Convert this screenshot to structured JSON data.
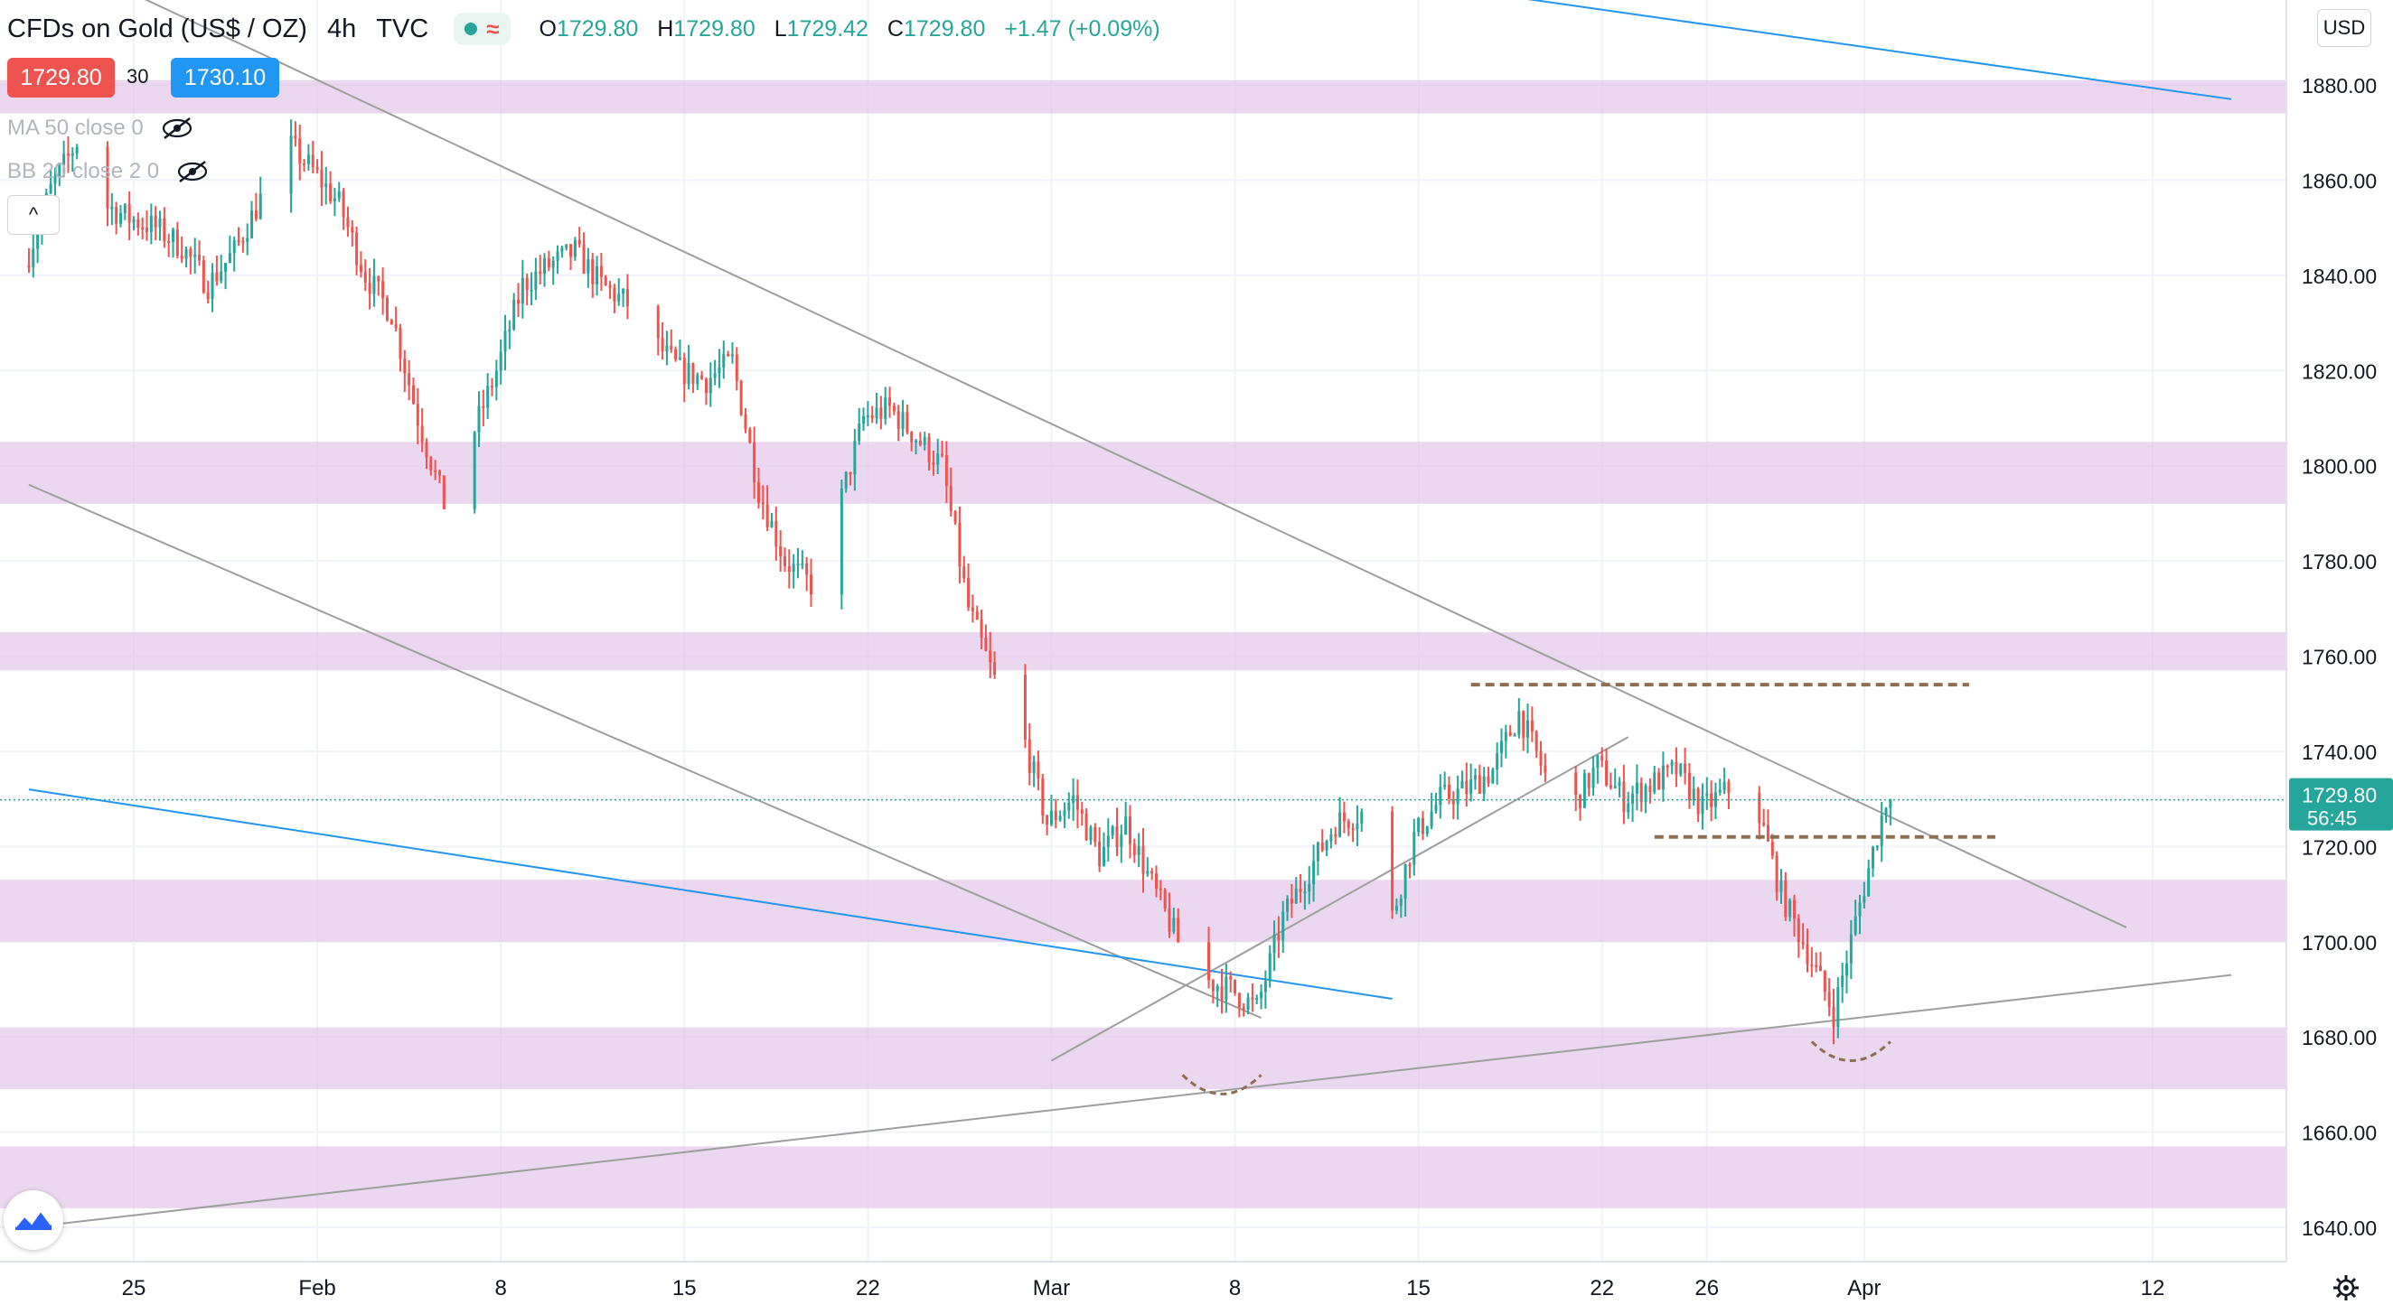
{
  "header": {
    "symbol": "CFDs on Gold (US$ / OZ)",
    "timeframe": "4h",
    "source": "TVC",
    "status_wave": "≈",
    "ohlc": {
      "o_label": "O",
      "o_value": "1729.80",
      "h_label": "H",
      "h_value": "1729.80",
      "l_label": "L",
      "l_value": "1729.42",
      "c_label": "C",
      "c_value": "1729.80",
      "change": "+1.47 (+0.09%)"
    }
  },
  "trade": {
    "sell_price": "1729.80",
    "spread": "30",
    "buy_price": "1730.10"
  },
  "indicators": [
    {
      "label": "MA 50 close 0",
      "icon": "eye-off-icon"
    },
    {
      "label": "BB 20 close 2 0",
      "icon": "eye-off-icon"
    }
  ],
  "collapse_glyph": "^",
  "currency_button": "USD",
  "price_label": {
    "price": "1729.80",
    "countdown": "56:45"
  },
  "colors": {
    "up": "#26a69a",
    "down": "#ef5350",
    "zone": "#e1bee7",
    "trendline_gray": "#9e9e9e",
    "trendline_blue": "#2196f3",
    "dashed_level": "#8d6e50",
    "grid": "#f0f3fa"
  },
  "chart_data": {
    "type": "candlestick",
    "title": "CFDs on Gold (US$ / OZ), 4h",
    "y_axis": {
      "range": [
        1636,
        1905
      ],
      "ticks": [
        1640,
        1660,
        1680,
        1700,
        1720,
        1740,
        1760,
        1780,
        1800,
        1820,
        1840,
        1860,
        1880
      ],
      "tick_labels": [
        "1640.00",
        "1660.00",
        "1680.00",
        "1700.00",
        "1720.00",
        "1740.00",
        "1760.00",
        "1780.00",
        "1800.00",
        "1820.00",
        "1840.00",
        "1860.00",
        "1880.00"
      ]
    },
    "x_axis": {
      "range": [
        "2021-01-21",
        "2021-04-15"
      ],
      "ticks": [
        {
          "date": "2021-01-25",
          "label": "25"
        },
        {
          "date": "2021-02-01",
          "label": "Feb"
        },
        {
          "date": "2021-02-08",
          "label": "8"
        },
        {
          "date": "2021-02-15",
          "label": "15"
        },
        {
          "date": "2021-02-22",
          "label": "22"
        },
        {
          "date": "2021-03-01",
          "label": "Mar"
        },
        {
          "date": "2021-03-08",
          "label": "8"
        },
        {
          "date": "2021-03-15",
          "label": "15"
        },
        {
          "date": "2021-03-22",
          "label": "22"
        },
        {
          "date": "2021-03-26",
          "label": "26"
        },
        {
          "date": "2021-04-01",
          "label": "Apr"
        },
        {
          "date": "2021-04-12",
          "label": "12"
        }
      ]
    },
    "price_path": [
      [
        "2021-01-21",
        1842
      ],
      [
        "2021-01-22",
        1858
      ],
      [
        "2021-01-23",
        1868
      ],
      [
        "2021-01-24",
        1855
      ],
      [
        "2021-01-25",
        1852
      ],
      [
        "2021-01-26",
        1850
      ],
      [
        "2021-01-27",
        1846
      ],
      [
        "2021-01-28",
        1838
      ],
      [
        "2021-01-29",
        1845
      ],
      [
        "2021-01-30",
        1856
      ],
      [
        "2021-01-31",
        1868
      ],
      [
        "2021-02-01",
        1862
      ],
      [
        "2021-02-02",
        1855
      ],
      [
        "2021-02-03",
        1840
      ],
      [
        "2021-02-04",
        1832
      ],
      [
        "2021-02-05",
        1810
      ],
      [
        "2021-02-06",
        1792
      ],
      [
        "2021-02-07",
        1805
      ],
      [
        "2021-02-08",
        1820
      ],
      [
        "2021-02-09",
        1838
      ],
      [
        "2021-02-10",
        1842
      ],
      [
        "2021-02-11",
        1845
      ],
      [
        "2021-02-12",
        1838
      ],
      [
        "2021-02-13",
        1834
      ],
      [
        "2021-02-14",
        1826
      ],
      [
        "2021-02-15",
        1820
      ],
      [
        "2021-02-16",
        1818
      ],
      [
        "2021-02-17",
        1822
      ],
      [
        "2021-02-18",
        1795
      ],
      [
        "2021-02-19",
        1780
      ],
      [
        "2021-02-20",
        1775
      ],
      [
        "2021-02-21",
        1790
      ],
      [
        "2021-02-22",
        1810
      ],
      [
        "2021-02-23",
        1812
      ],
      [
        "2021-02-24",
        1806
      ],
      [
        "2021-02-25",
        1800
      ],
      [
        "2021-02-26",
        1770
      ],
      [
        "2021-02-27",
        1755
      ],
      [
        "2021-02-28",
        1745
      ],
      [
        "2021-03-01",
        1725
      ],
      [
        "2021-03-02",
        1730
      ],
      [
        "2021-03-03",
        1718
      ],
      [
        "2021-03-04",
        1725
      ],
      [
        "2021-03-05",
        1712
      ],
      [
        "2021-03-06",
        1700
      ],
      [
        "2021-03-07",
        1692
      ],
      [
        "2021-03-08",
        1690
      ],
      [
        "2021-03-09",
        1686
      ],
      [
        "2021-03-10",
        1705
      ],
      [
        "2021-03-11",
        1715
      ],
      [
        "2021-03-12",
        1725
      ],
      [
        "2021-03-13",
        1727
      ],
      [
        "2021-03-14",
        1702
      ],
      [
        "2021-03-15",
        1722
      ],
      [
        "2021-03-16",
        1730
      ],
      [
        "2021-03-17",
        1732
      ],
      [
        "2021-03-18",
        1736
      ],
      [
        "2021-03-19",
        1748
      ],
      [
        "2021-03-20",
        1735
      ],
      [
        "2021-03-21",
        1728
      ],
      [
        "2021-03-22",
        1737
      ],
      [
        "2021-03-23",
        1730
      ],
      [
        "2021-03-24",
        1733
      ],
      [
        "2021-03-25",
        1736
      ],
      [
        "2021-03-26",
        1728
      ],
      [
        "2021-03-27",
        1732
      ],
      [
        "2021-03-28",
        1730
      ],
      [
        "2021-03-29",
        1710
      ],
      [
        "2021-03-30",
        1698
      ],
      [
        "2021-03-31",
        1685
      ],
      [
        "2021-04-01",
        1708
      ],
      [
        "2021-04-02",
        1729.8
      ]
    ],
    "horizontal_zones": [
      {
        "from": 1874,
        "to": 1881
      },
      {
        "from": 1792,
        "to": 1805
      },
      {
        "from": 1757,
        "to": 1765
      },
      {
        "from": 1700,
        "to": 1713
      },
      {
        "from": 1669,
        "to": 1682
      },
      {
        "from": 1644,
        "to": 1657
      }
    ],
    "trendlines": [
      {
        "color": "gray",
        "from": [
          "2021-01-20",
          1912
        ],
        "to": [
          "2021-04-11",
          1703
        ]
      },
      {
        "color": "gray",
        "from": [
          "2021-01-21",
          1796
        ],
        "to": [
          "2021-03-09",
          1684
        ]
      },
      {
        "color": "gray",
        "from": [
          "2021-01-21",
          1640
        ],
        "to": [
          "2021-04-15",
          1693
        ]
      },
      {
        "color": "gray",
        "from": [
          "2021-03-01",
          1675
        ],
        "to": [
          "2021-03-23",
          1743
        ]
      },
      {
        "color": "blue",
        "from": [
          "2021-01-21",
          1732
        ],
        "to": [
          "2021-03-14",
          1688
        ]
      },
      {
        "color": "blue",
        "from": [
          "2021-02-14",
          1924
        ],
        "to": [
          "2021-04-15",
          1877
        ]
      }
    ],
    "dashed_levels": [
      {
        "value": 1754,
        "from": "2021-03-17",
        "to": "2021-04-05"
      },
      {
        "value": 1722,
        "from": "2021-03-24",
        "to": "2021-04-06"
      }
    ],
    "arcs": [
      {
        "from": [
          "2021-03-06",
          1672
        ],
        "to": [
          "2021-03-09",
          1672
        ],
        "depth": 4
      },
      {
        "from": [
          "2021-03-30",
          1679
        ],
        "to": [
          "2021-04-02",
          1679
        ],
        "depth": 4
      }
    ],
    "last_price": 1729.8,
    "grid": true
  }
}
